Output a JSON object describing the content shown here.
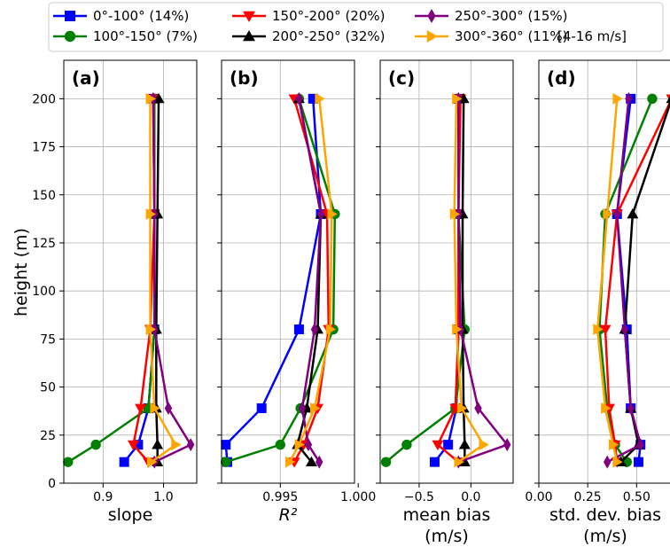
{
  "chart_data": {
    "type": "line",
    "ylabel": "height (m)",
    "ylim": [
      0,
      220
    ],
    "y_ticks": [
      "0",
      "25",
      "50",
      "75",
      "100",
      "125",
      "150",
      "175",
      "200"
    ],
    "grid": true,
    "legend": {
      "placement": "top",
      "note": "[4-16 m/s]",
      "entries": [
        {
          "name": "0°-100° (14%)",
          "color": "#0000ff",
          "marker": "square"
        },
        {
          "name": "100°-150° (7%)",
          "color": "#008000",
          "marker": "circle"
        },
        {
          "name": "150°-200° (20%)",
          "color": "#ff0000",
          "marker": "triangle-down"
        },
        {
          "name": "200°-250° (32%)",
          "color": "#000000",
          "marker": "triangle-up"
        },
        {
          "name": "250°-300° (15%)",
          "color": "#800080",
          "marker": "diamond"
        },
        {
          "name": "300°-360° (11%)",
          "color": "#ffa500",
          "marker": "triangle-right"
        }
      ]
    },
    "heights": [
      11,
      20,
      39,
      80,
      140,
      200
    ],
    "panels": [
      {
        "label": "(a)",
        "xlabel": [
          "slope"
        ],
        "xlim": [
          0.835,
          1.055
        ],
        "x_ticks": [
          {
            "v": 0.9,
            "t": "0.9"
          },
          {
            "v": 1.0,
            "t": "1.0"
          }
        ],
        "series": [
          {
            "color": "#0000ff",
            "marker": "square",
            "values": [
              0.935,
              0.958,
              0.975,
              0.985,
              0.985,
              0.983
            ]
          },
          {
            "color": "#008000",
            "marker": "circle",
            "values": [
              0.842,
              0.888,
              0.975,
              0.985,
              0.985,
              0.985
            ]
          },
          {
            "color": "#ff0000",
            "marker": "triangle-down",
            "values": [
              0.975,
              0.95,
              0.962,
              0.978,
              0.985,
              0.983
            ]
          },
          {
            "color": "#000000",
            "marker": "triangle-up",
            "values": [
              0.99,
              0.99,
              0.988,
              0.988,
              0.99,
              0.992
            ]
          },
          {
            "color": "#800080",
            "marker": "diamond",
            "values": [
              0.985,
              1.045,
              1.008,
              0.985,
              0.985,
              0.983
            ]
          },
          {
            "color": "#ffa500",
            "marker": "triangle-right",
            "values": [
              0.98,
              1.02,
              0.985,
              0.978,
              0.978,
              0.978
            ]
          }
        ]
      },
      {
        "label": "(b)",
        "xlabel": [
          "R²"
        ],
        "xlim": [
          0.99123,
          0.99976
        ],
        "x_ticks": [
          {
            "v": 0.995,
            "t": "0.995"
          },
          {
            "v": 1.0,
            "t": "1.000"
          }
        ],
        "series": [
          {
            "color": "#0000ff",
            "marker": "square",
            "values": [
              0.9916,
              0.9915,
              0.9938,
              0.9962,
              0.9976,
              0.9971
            ]
          },
          {
            "color": "#008000",
            "marker": "circle",
            "values": [
              0.9915,
              0.995,
              0.9963,
              0.9984,
              0.9985,
              0.9962
            ]
          },
          {
            "color": "#ff0000",
            "marker": "triangle-down",
            "values": [
              0.9959,
              0.9965,
              0.9974,
              0.9981,
              0.998,
              0.9959
            ]
          },
          {
            "color": "#000000",
            "marker": "triangle-up",
            "values": [
              0.997,
              0.9961,
              0.9967,
              0.9974,
              0.9976,
              0.9962
            ]
          },
          {
            "color": "#800080",
            "marker": "diamond",
            "values": [
              0.9975,
              0.9968,
              0.9964,
              0.9972,
              0.9976,
              0.9962
            ]
          },
          {
            "color": "#ffa500",
            "marker": "triangle-right",
            "values": [
              0.9956,
              0.9962,
              0.9972,
              0.9982,
              0.9983,
              0.9975
            ]
          }
        ]
      },
      {
        "label": "(c)",
        "xlabel": [
          "mean bias",
          "(m/s)"
        ],
        "xlim": [
          -0.876,
          0.408
        ],
        "x_ticks": [
          {
            "v": -0.5,
            "t": "−0.5"
          },
          {
            "v": 0.0,
            "t": "0.0"
          }
        ],
        "series": [
          {
            "color": "#0000ff",
            "marker": "square",
            "values": [
              -0.35,
              -0.22,
              -0.14,
              -0.12,
              -0.12,
              -0.12
            ]
          },
          {
            "color": "#008000",
            "marker": "circle",
            "values": [
              -0.82,
              -0.62,
              -0.15,
              -0.06,
              -0.12,
              -0.12
            ]
          },
          {
            "color": "#ff0000",
            "marker": "triangle-down",
            "values": [
              -0.12,
              -0.32,
              -0.15,
              -0.12,
              -0.12,
              -0.1
            ]
          },
          {
            "color": "#000000",
            "marker": "triangle-up",
            "values": [
              -0.06,
              -0.06,
              -0.07,
              -0.08,
              -0.08,
              -0.07
            ]
          },
          {
            "color": "#800080",
            "marker": "diamond",
            "values": [
              -0.12,
              0.35,
              0.07,
              -0.1,
              -0.12,
              -0.12
            ]
          },
          {
            "color": "#ffa500",
            "marker": "triangle-right",
            "values": [
              -0.12,
              0.12,
              -0.09,
              -0.14,
              -0.16,
              -0.14
            ]
          }
        ]
      },
      {
        "label": "(d)",
        "xlabel": [
          "std. dev. bias",
          "(m/s)"
        ],
        "xlim": [
          0,
          0.68
        ],
        "x_ticks": [
          {
            "v": 0.0,
            "t": "0.00"
          },
          {
            "v": 0.25,
            "t": "0.25"
          },
          {
            "v": 0.5,
            "t": "0.50"
          }
        ],
        "series": [
          {
            "color": "#0000ff",
            "marker": "square",
            "values": [
              0.51,
              0.52,
              0.47,
              0.45,
              0.4,
              0.47
            ]
          },
          {
            "color": "#008000",
            "marker": "circle",
            "values": [
              0.45,
              0.39,
              0.35,
              0.31,
              0.34,
              0.58
            ]
          },
          {
            "color": "#ff0000",
            "marker": "triangle-down",
            "values": [
              0.4,
              0.39,
              0.36,
              0.34,
              0.4,
              0.68
            ]
          },
          {
            "color": "#000000",
            "marker": "triangle-up",
            "values": [
              0.42,
              0.51,
              0.47,
              0.44,
              0.48,
              0.68
            ]
          },
          {
            "color": "#800080",
            "marker": "diamond",
            "values": [
              0.35,
              0.52,
              0.47,
              0.44,
              0.4,
              0.46
            ]
          },
          {
            "color": "#ffa500",
            "marker": "triangle-right",
            "values": [
              0.4,
              0.38,
              0.34,
              0.3,
              0.35,
              0.4
            ]
          }
        ]
      }
    ]
  }
}
